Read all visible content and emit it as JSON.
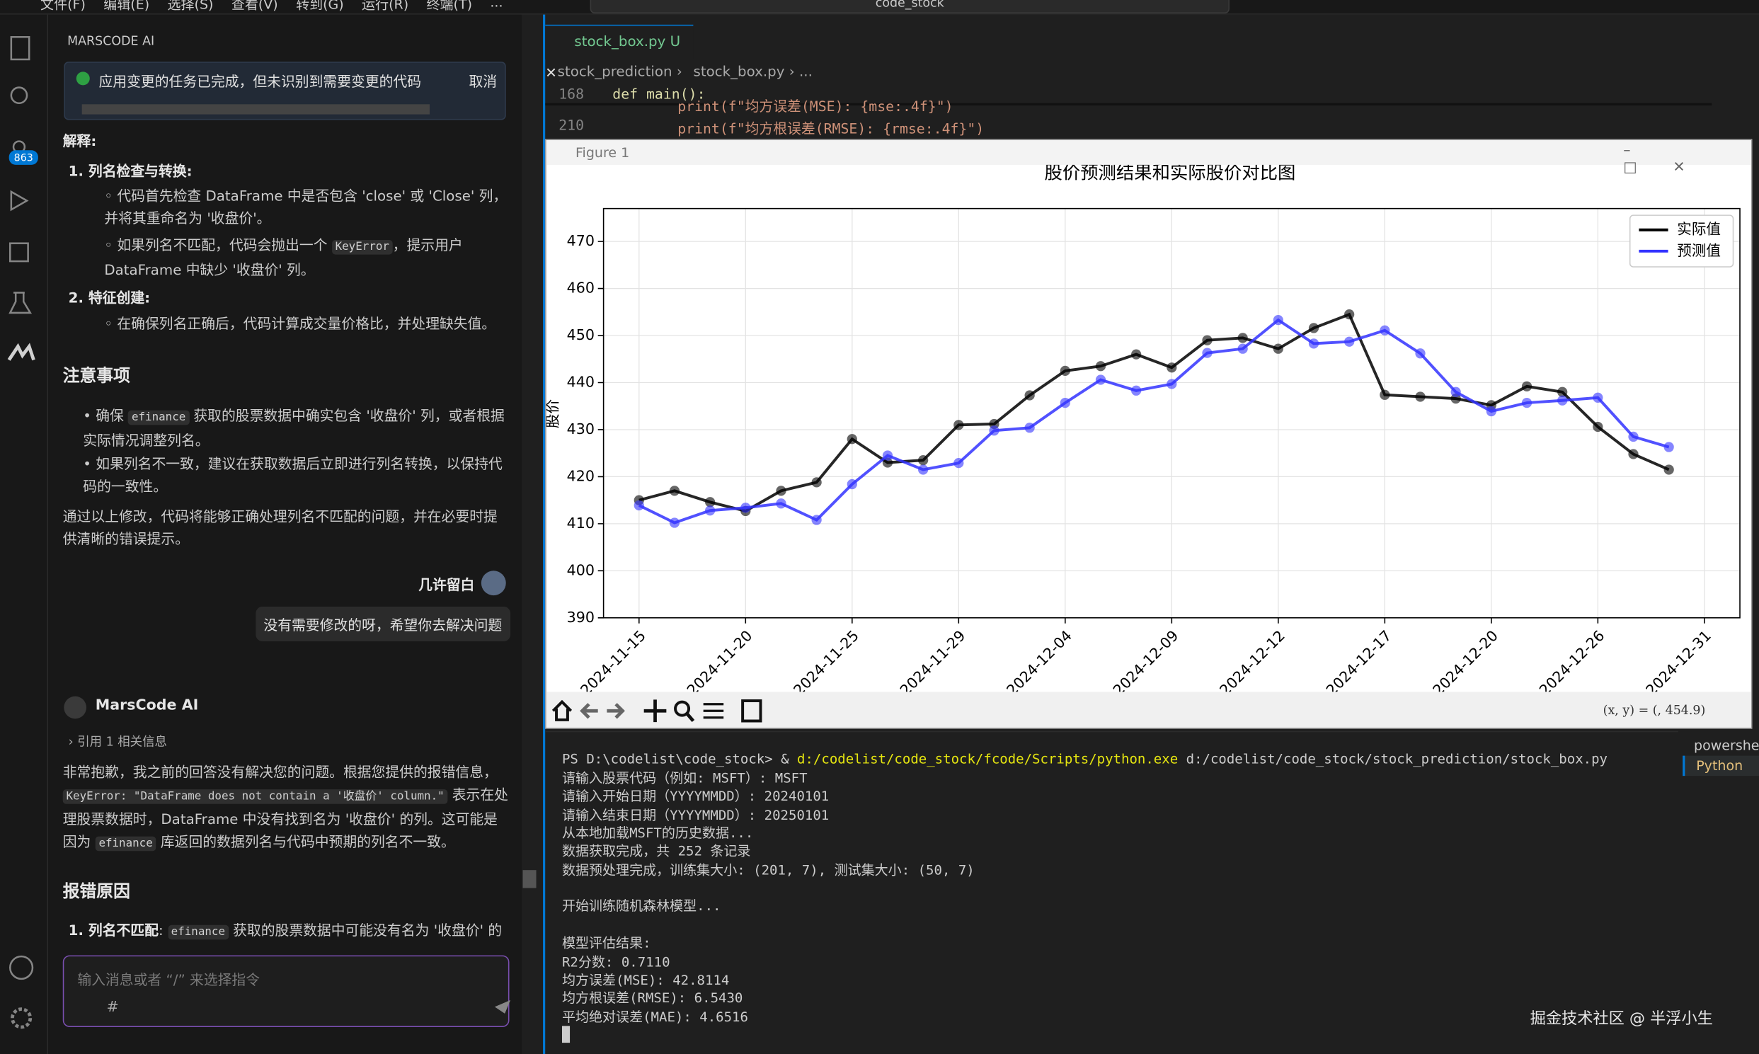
{
  "titlebar": {
    "menu": [
      "文件(F)",
      "编辑(E)",
      "选择(S)",
      "查看(V)",
      "转到(G)",
      "运行(R)",
      "终端(T)",
      "..."
    ],
    "search": "code_stock"
  },
  "activity_badge": "863",
  "assistant": {
    "title": "MARSCODE AI",
    "notice": "应用变更的任务已完成，但未识别到需要变更的代码",
    "cancel": "取消",
    "explain_heading": "解释:",
    "step1": {
      "num": "1.",
      "title": "列名检查与转换:",
      "bullets": [
        "◦ 代码首先检查 DataFrame 中是否包含 'close' 或 'Close' 列，并将其重命名为 '收盘价'。",
        [
          "◦ 如果列名不匹配，代码会抛出一个 ",
          "KeyError",
          "，提示用户 DataFrame 中缺少 '收盘价' 列。"
        ]
      ]
    },
    "step2": {
      "num": "2.",
      "title": "特征创建:",
      "bullets": [
        "◦ 在确保列名正确后，代码计算成交量价格比，并处理缺失值。"
      ]
    },
    "notes_heading": "注意事项",
    "notes": [
      [
        "• 确保 ",
        "efinance",
        " 获取的股票数据中确实包含 '收盘价' 列，或者根据实际情况调整列名。"
      ],
      "• 如果列名不一致，建议在获取数据后立即进行列名转换，以保持代码的一致性。"
    ],
    "summary": "通过以上修改，代码将能够正确处理列名不匹配的问题，并在必要时提供清晰的错误提示。",
    "user_name": "几许留白",
    "user_message": "没有需要修改的呀，希望你去解决问题",
    "ai_name": "MarsCode AI",
    "reference": "引用 1 相关信息",
    "answer": [
      "非常抱歉，我之前的回答没有解决您的问题。根据您提供的报错信息，",
      "KeyError: \"DataFrame does not contain a '收盘价' column.\"",
      " 表示在处理股票数据时，DataFrame 中没有找到名为 '收盘价' 的列。这可能是因为 ",
      "efinance",
      " 库返回的数据列名与代码中预期的列名不一致。"
    ],
    "cause_heading": "报错原因",
    "cause": [
      "1. 列名不匹配",
      ": ",
      "efinance",
      " 获取的股票数据中可能没有名为 '收盘价' 的"
    ],
    "input_placeholder": "输入消息或者 “/” 来选择指令",
    "hash": "#"
  },
  "editor": {
    "tab": "stock_box.py",
    "tab_status": "U",
    "breadcrumbs": [
      "stock_prediction",
      "stock_box.py",
      "..."
    ],
    "lines": [
      {
        "number": "168",
        "code": "def main():"
      },
      {
        "code": "print(f\"均方误差(MSE): {mse:.4f}\")"
      },
      {
        "number": "210",
        "code": "print(f\"均方根误差(RMSE): {rmse:.4f}\")"
      }
    ]
  },
  "figure": {
    "window_title": "Figure 1",
    "coords": "(x, y) = (, 454.9)",
    "chart_data": {
      "type": "line",
      "title": "股价预测结果和实际股价对比图",
      "y_label": "股价",
      "categories": [
        "2024-11-15",
        null,
        null,
        "2024-11-20",
        null,
        null,
        "2024-11-25",
        null,
        null,
        "2024-11-29",
        null,
        null,
        "2024-12-04",
        null,
        null,
        "2024-12-09",
        null,
        null,
        "2024-12-12",
        null,
        null,
        "2024-12-17",
        null,
        null,
        "2024-12-20",
        null,
        null,
        "2024-12-26",
        null,
        null,
        "2024-12-31"
      ],
      "series": [
        {
          "name": "实际值",
          "color": "#000000",
          "values": [
            415,
            417,
            414.6,
            412.7,
            417,
            418.8,
            428,
            423,
            423.5,
            431,
            431.2,
            437.3,
            442.5,
            443.5,
            446,
            443.2,
            449,
            449.5,
            447.2,
            451.6,
            454.5,
            437.4,
            437,
            436.6,
            435.2,
            439.2,
            438,
            430.6,
            424.8,
            421.5,
            null
          ]
        },
        {
          "name": "预测值",
          "color": "#3333ff",
          "values": [
            413.9,
            410.2,
            412.8,
            413.4,
            414.3,
            410.8,
            418.4,
            424.5,
            421.5,
            422.9,
            429.8,
            430.4,
            435.7,
            440.6,
            438.3,
            439.7,
            446.3,
            447.2,
            453.3,
            448.3,
            448.7,
            451.1,
            446.2,
            438,
            433.9,
            435.7,
            436.2,
            436.8,
            428.5,
            426.3,
            null
          ]
        }
      ],
      "ylim": [
        390,
        477
      ],
      "yticks": [
        390,
        400,
        410,
        420,
        430,
        440,
        450,
        460,
        470
      ],
      "grid": true,
      "legend": "upper right"
    }
  },
  "terminal": {
    "command": [
      "PS D:\\codelist\\code_stock> & ",
      "d:/codelist/code_stock/fcode/Scripts/python.exe",
      " d:/codelist/code_stock/stock_prediction/stock_box.py"
    ],
    "output": [
      "请输入股票代码（例如: MSFT）: MSFT",
      "请输入开始日期（YYYYMMDD）: 20240101",
      "请输入结束日期（YYYYMMDD）: 20250101",
      "从本地加载MSFT的历史数据...",
      "数据获取完成，共 252 条记录",
      "数据预处理完成，训练集大小: (201, 7), 测试集大小: (50, 7)",
      "开始训练随机森林模型...",
      "模型评估结果:",
      "R2分数: 0.7110",
      "均方误差(MSE): 42.8114",
      "均方根误差(RMSE): 6.5430",
      "平均绝对误差(MAE): 4.6516"
    ],
    "tabs": [
      "powershell",
      "Python"
    ]
  },
  "watermark": "掘金技术社区 @ 半浮小生"
}
